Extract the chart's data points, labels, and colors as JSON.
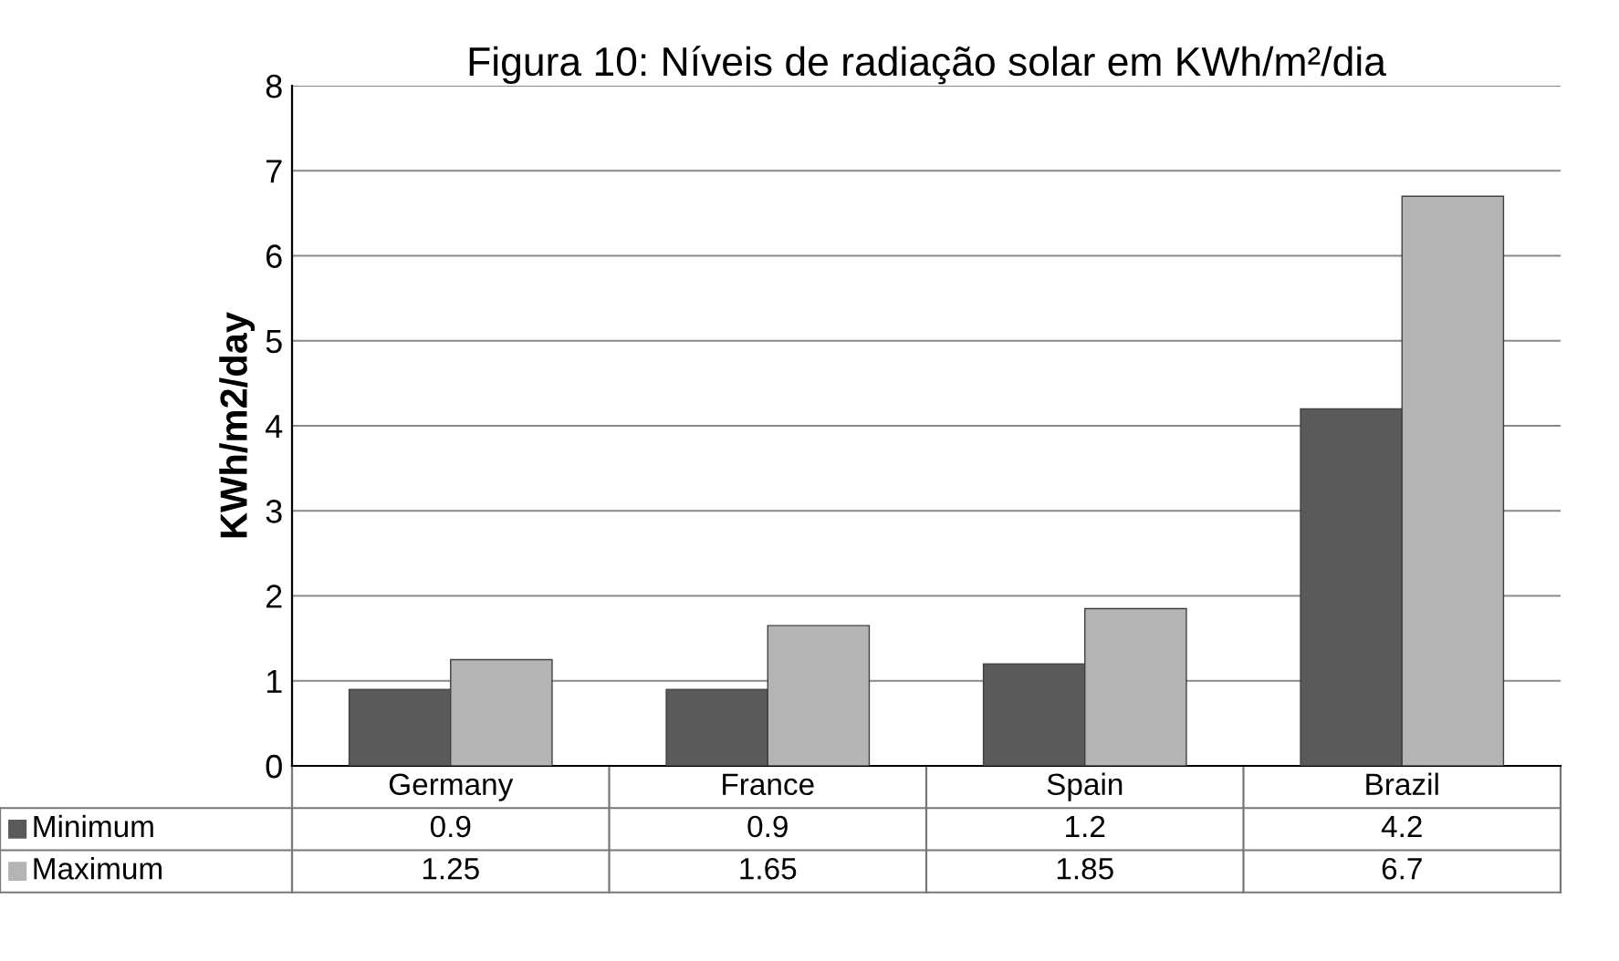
{
  "chart_data": {
    "type": "bar",
    "title": "Figura 10: Níveis de radiação solar em KWh/m²/dia",
    "ylabel": "KWh/m2/day",
    "categories": [
      "Germany",
      "France",
      "Spain",
      "Brazil"
    ],
    "series": [
      {
        "name": "Minimum",
        "color": "#5a5a5a",
        "values": [
          0.9,
          0.9,
          1.2,
          4.2
        ]
      },
      {
        "name": "Maximum",
        "color": "#b4b4b4",
        "values": [
          1.25,
          1.65,
          1.85,
          6.7
        ]
      }
    ],
    "ylim": [
      0,
      8
    ],
    "yticks": [
      0,
      1,
      2,
      3,
      4,
      5,
      6,
      7,
      8
    ],
    "grid": "y",
    "data_labels": true,
    "legend": "bottom"
  }
}
